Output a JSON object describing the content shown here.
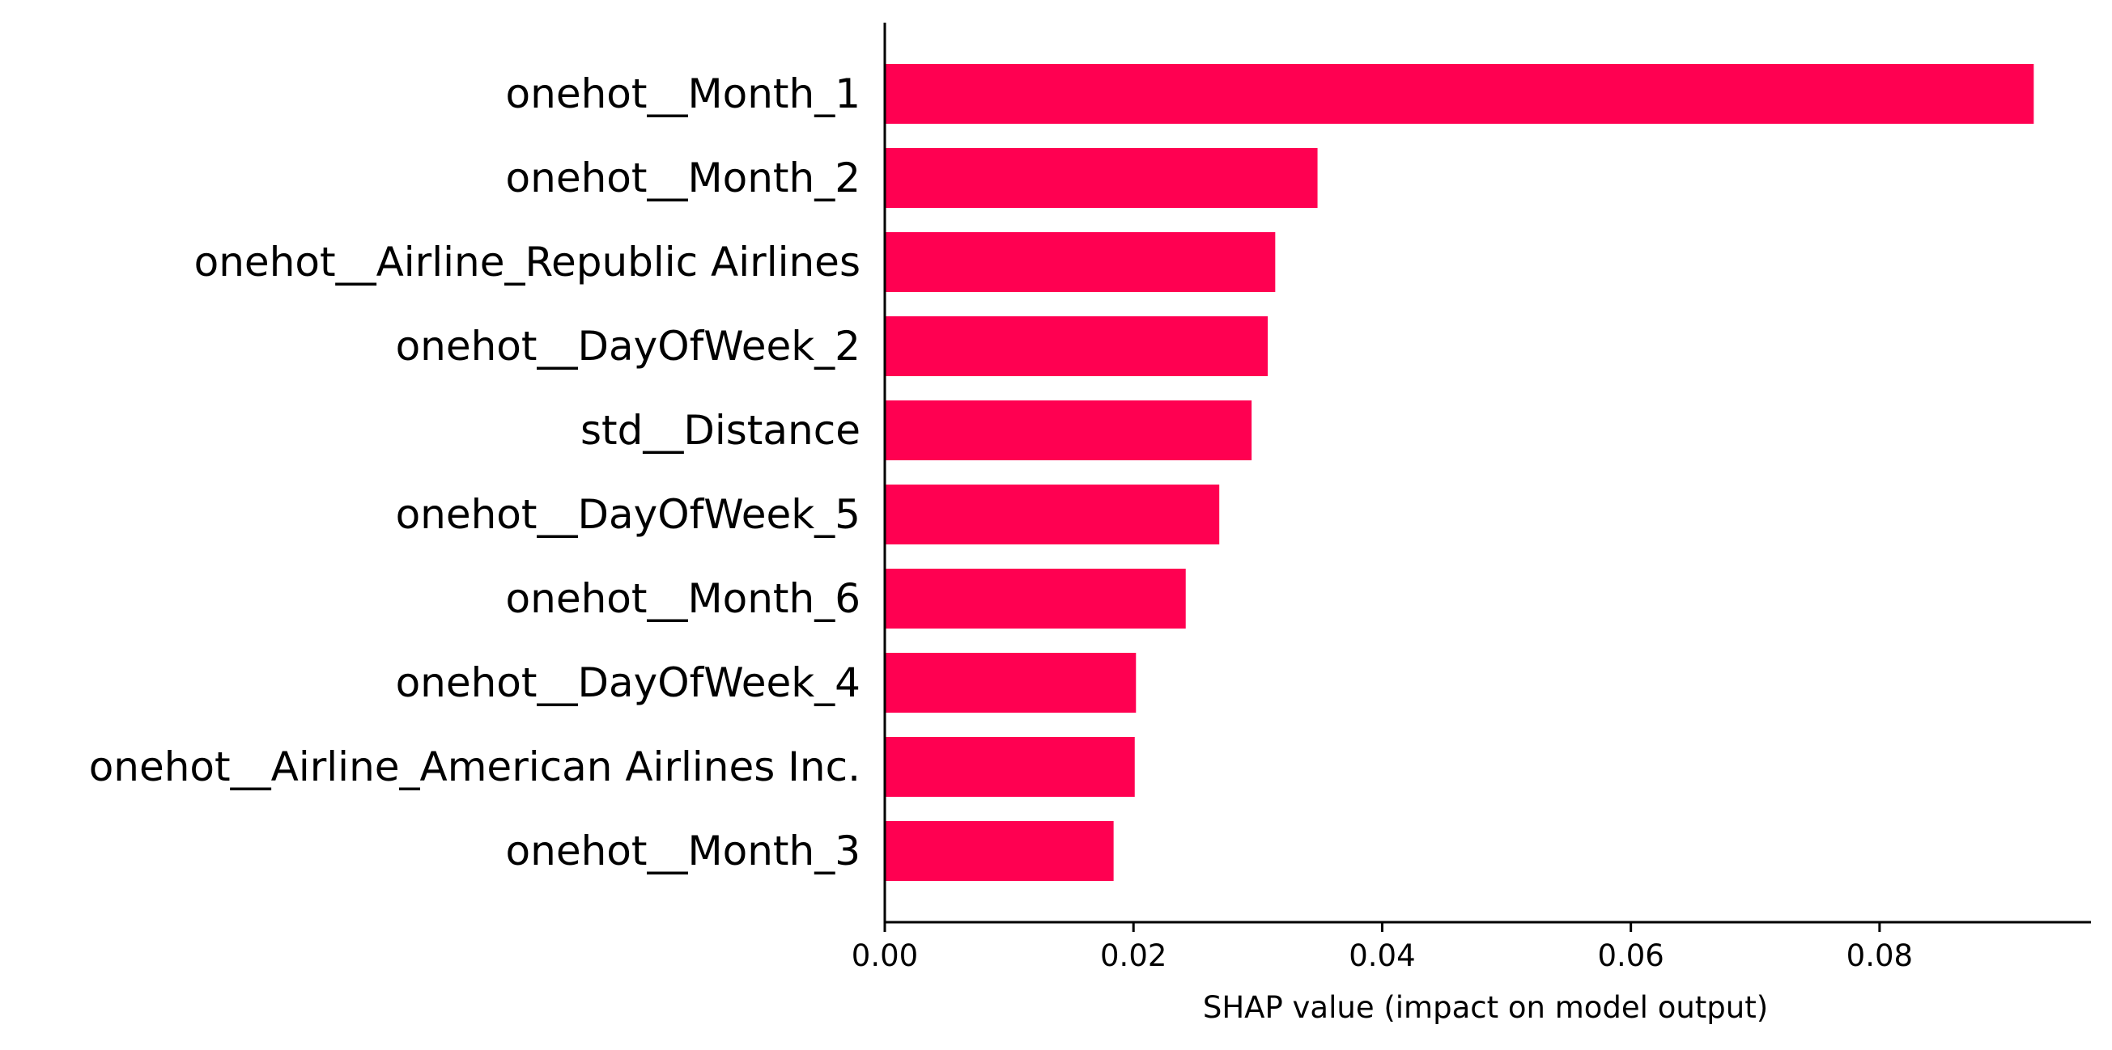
{
  "chart_data": {
    "type": "bar",
    "orientation": "horizontal",
    "title": "",
    "xlabel": "SHAP value (impact on model output)",
    "ylabel": "",
    "xlim": [
      0,
      0.097
    ],
    "xticks": [
      0.0,
      0.02,
      0.04,
      0.06,
      0.08
    ],
    "xtick_labels": [
      "0.00",
      "0.02",
      "0.04",
      "0.06",
      "0.08"
    ],
    "grid": false,
    "bar_color": "#ff0051",
    "categories": [
      "onehot__Month_1",
      "onehot__Month_2",
      "onehot__Airline_Republic Airlines",
      "onehot__DayOfWeek_2",
      "std__Distance",
      "onehot__DayOfWeek_5",
      "onehot__Month_6",
      "onehot__DayOfWeek_4",
      "onehot__Airline_American Airlines Inc.",
      "onehot__Month_3"
    ],
    "values": [
      0.0924,
      0.0348,
      0.0314,
      0.0308,
      0.0295,
      0.0269,
      0.0242,
      0.0202,
      0.0201,
      0.0184
    ]
  }
}
